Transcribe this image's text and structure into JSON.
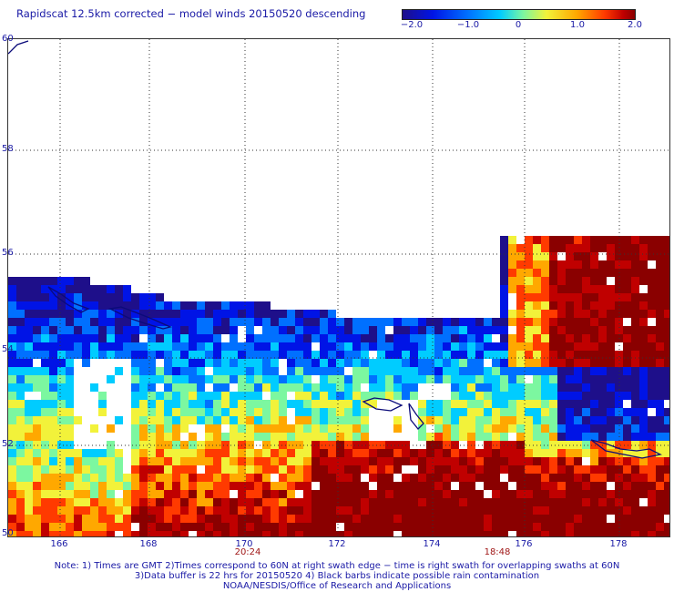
{
  "title": "Rapidscat 12.5km corrected − model winds 20150520 descending",
  "colorbar": {
    "labels": [
      "−2.0",
      "−1.0",
      "0",
      "1.0",
      "2.0"
    ],
    "colors": [
      "#1e0f8a",
      "#0014e6",
      "#0070ff",
      "#00ccff",
      "#7cf7a0",
      "#f2f23a",
      "#ffa800",
      "#ff3a00",
      "#c00000",
      "#8a0000"
    ]
  },
  "axes": {
    "lat_labels": [
      "60",
      "58",
      "56",
      "54",
      "52",
      "50"
    ],
    "lon_labels": [
      "166",
      "168",
      "170",
      "172",
      "174",
      "176",
      "178"
    ]
  },
  "times": [
    "20:24",
    "18:48"
  ],
  "notes": [
    "Note: 1) Times are GMT 2)Times correspond to 60N at right swath edge − time is right swath for overlapping swaths at 60N",
    "3)Data buffer is 22 hrs for 20150520 4) Black barbs indicate possible rain contamination",
    "NOAA/NESDIS/Office of Research and Applications"
  ]
}
